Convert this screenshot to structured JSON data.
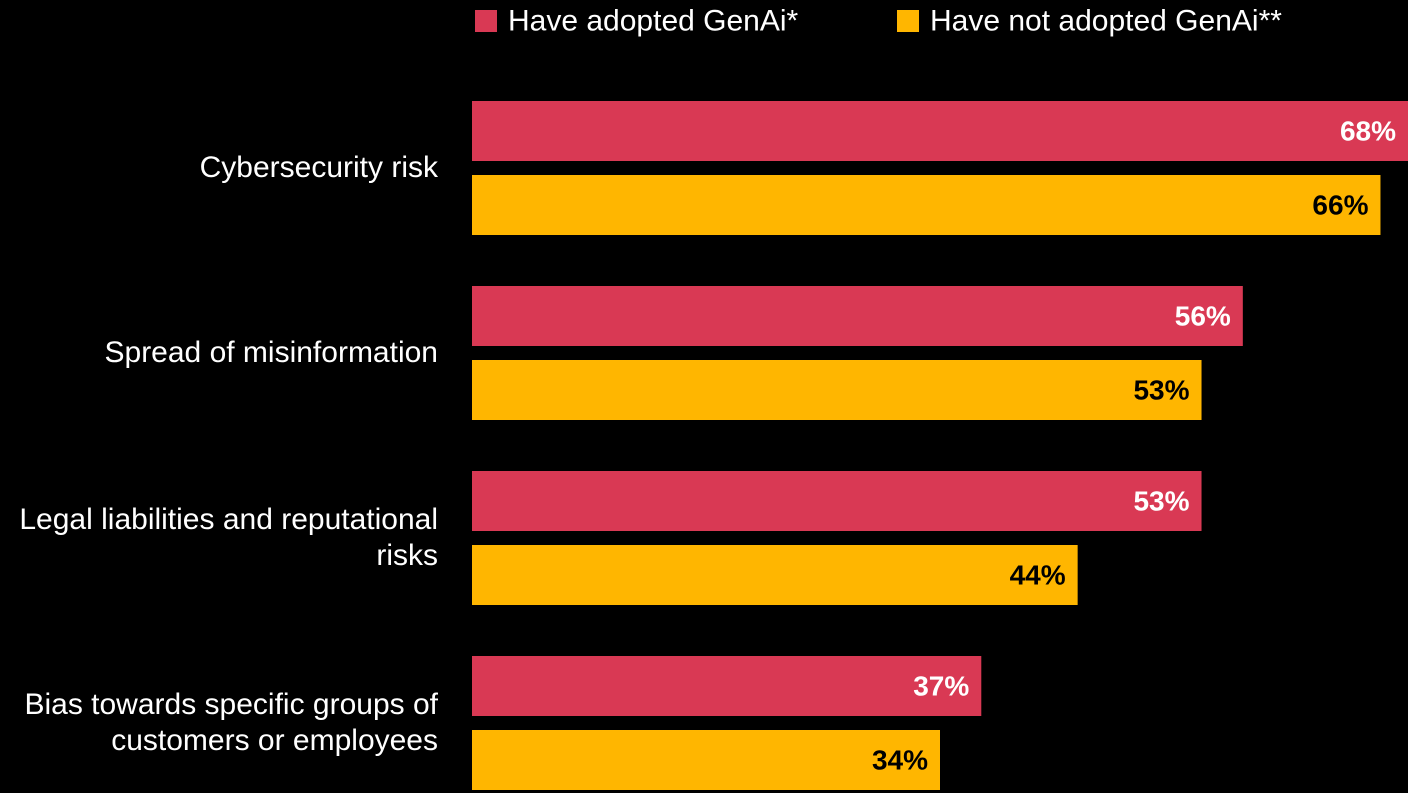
{
  "chart_data": {
    "type": "bar",
    "orientation": "horizontal",
    "categories": [
      "Cybersecurity risk",
      "Spread of misinformation",
      "Legal liabilities and reputational risks",
      "Bias towards specific groups of customers or employees"
    ],
    "series": [
      {
        "name": "Have adopted GenAi*",
        "color": "#d93954",
        "values": [
          68,
          56,
          53,
          37
        ],
        "value_labels": [
          "68%",
          "56%",
          "53%",
          "37%"
        ]
      },
      {
        "name": "Have not adopted GenAi**",
        "color": "#ffb600",
        "values": [
          66,
          53,
          44,
          34
        ],
        "value_labels": [
          "66%",
          "53%",
          "44%",
          "34%"
        ]
      }
    ],
    "xlim": [
      0,
      68
    ],
    "legend": "top"
  }
}
